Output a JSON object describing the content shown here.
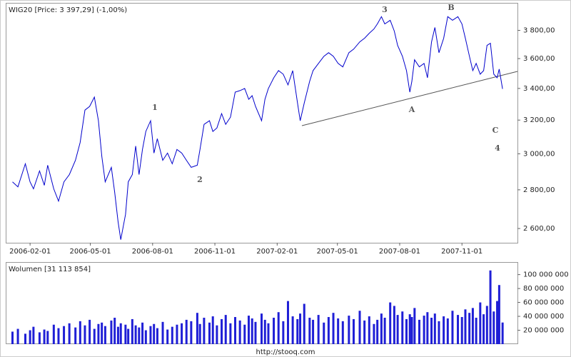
{
  "chart_data": [
    {
      "type": "line",
      "title": "WIG20 [Price: 3 397,29] (-1,00%)",
      "color": "#0000cc",
      "log_scale": true,
      "x": [
        "2006-01-06",
        "2006-01-14",
        "2006-01-25",
        "2006-02-01",
        "2006-02-06",
        "2006-02-15",
        "2006-02-22",
        "2006-02-27",
        "2006-03-08",
        "2006-03-15",
        "2006-03-23",
        "2006-03-31",
        "2006-04-09",
        "2006-04-16",
        "2006-04-23",
        "2006-04-30",
        "2006-05-07",
        "2006-05-13",
        "2006-05-18",
        "2006-05-23",
        "2006-06-01",
        "2006-06-06",
        "2006-06-11",
        "2006-06-15",
        "2006-06-22",
        "2006-06-26",
        "2006-07-02",
        "2006-07-07",
        "2006-07-12",
        "2006-07-17",
        "2006-07-22",
        "2006-07-29",
        "2006-08-03",
        "2006-08-08",
        "2006-08-16",
        "2006-08-23",
        "2006-08-30",
        "2006-09-06",
        "2006-09-13",
        "2006-09-20",
        "2006-09-27",
        "2006-10-06",
        "2006-10-10",
        "2006-10-16",
        "2006-10-24",
        "2006-10-29",
        "2006-11-04",
        "2006-11-11",
        "2006-11-17",
        "2006-11-24",
        "2006-12-01",
        "2006-12-08",
        "2006-12-15",
        "2006-12-21",
        "2006-12-26",
        "2006-12-31",
        "2007-01-09",
        "2007-01-14",
        "2007-01-19",
        "2007-01-27",
        "2007-02-03",
        "2007-02-10",
        "2007-02-17",
        "2007-02-24",
        "2007-03-03",
        "2007-03-07",
        "2007-03-13",
        "2007-03-21",
        "2007-03-26",
        "2007-04-03",
        "2007-04-11",
        "2007-04-18",
        "2007-04-25",
        "2007-05-02",
        "2007-05-09",
        "2007-05-18",
        "2007-05-25",
        "2007-06-03",
        "2007-06-10",
        "2007-06-17",
        "2007-06-24",
        "2007-06-29",
        "2007-07-05",
        "2007-07-10",
        "2007-07-18",
        "2007-07-24",
        "2007-07-29",
        "2007-08-05",
        "2007-08-11",
        "2007-08-16",
        "2007-08-19",
        "2007-08-23",
        "2007-08-30",
        "2007-09-06",
        "2007-09-11",
        "2007-09-17",
        "2007-09-22",
        "2007-09-28",
        "2007-10-05",
        "2007-10-11",
        "2007-10-18",
        "2007-10-26",
        "2007-11-01",
        "2007-11-06",
        "2007-11-12",
        "2007-11-17",
        "2007-11-22",
        "2007-11-28",
        "2007-12-03",
        "2007-12-08",
        "2007-12-13",
        "2007-12-18",
        "2007-12-23",
        "2007-12-26",
        "2007-12-31"
      ],
      "values": [
        2843,
        2816,
        2943,
        2843,
        2805,
        2903,
        2824,
        2935,
        2805,
        2740,
        2843,
        2883,
        2963,
        3066,
        3262,
        3285,
        3344,
        3196,
        2983,
        2843,
        2923,
        2786,
        2635,
        2545,
        2672,
        2843,
        2883,
        3045,
        2883,
        3025,
        3131,
        3196,
        3004,
        3088,
        2963,
        3004,
        2943,
        3025,
        3004,
        2963,
        2923,
        2935,
        3025,
        3174,
        3196,
        3131,
        3152,
        3240,
        3174,
        3218,
        3376,
        3386,
        3400,
        3330,
        3353,
        3285,
        3196,
        3330,
        3400,
        3470,
        3518,
        3494,
        3423,
        3518,
        3307,
        3196,
        3307,
        3446,
        3518,
        3567,
        3616,
        3641,
        3616,
        3567,
        3543,
        3641,
        3666,
        3717,
        3743,
        3779,
        3810,
        3847,
        3901,
        3847,
        3874,
        3795,
        3692,
        3616,
        3518,
        3376,
        3446,
        3592,
        3543,
        3567,
        3470,
        3717,
        3821,
        3641,
        3743,
        3901,
        3874,
        3901,
        3847,
        3743,
        3616,
        3518,
        3567,
        3494,
        3518,
        3692,
        3707,
        3494,
        3470,
        3528,
        3397
      ],
      "xlim": [
        "2005-12-27",
        "2008-01-22"
      ],
      "xticks": [
        "2006-02-01",
        "2006-05-01",
        "2006-08-01",
        "2006-11-01",
        "2007-02-01",
        "2007-05-01",
        "2007-08-01",
        "2007-11-01"
      ],
      "ylim": [
        2530,
        4000
      ],
      "yticks": [
        {
          "value": 2600,
          "label": "2 600,00"
        },
        {
          "value": 2800,
          "label": "2 800,00"
        },
        {
          "value": 3000,
          "label": "3 000,00"
        },
        {
          "value": 3200,
          "label": "3 200,00"
        },
        {
          "value": 3400,
          "label": "3 400,00"
        },
        {
          "value": 3600,
          "label": "3 600,00"
        },
        {
          "value": 3800,
          "label": "3 800,00"
        }
      ],
      "annotations": [
        "1",
        "2",
        "3",
        "A",
        "B",
        "C",
        "4"
      ]
    },
    {
      "type": "bar",
      "title": "Wolumen [31 113 854]",
      "color": "#1f1fd6",
      "x": [
        "2006-01-06",
        "2006-01-14",
        "2006-01-25",
        "2006-02-01",
        "2006-02-06",
        "2006-02-15",
        "2006-02-22",
        "2006-02-27",
        "2006-03-08",
        "2006-03-15",
        "2006-03-23",
        "2006-03-31",
        "2006-04-09",
        "2006-04-16",
        "2006-04-23",
        "2006-04-30",
        "2006-05-07",
        "2006-05-13",
        "2006-05-18",
        "2006-05-23",
        "2006-06-01",
        "2006-06-06",
        "2006-06-11",
        "2006-06-15",
        "2006-06-22",
        "2006-06-26",
        "2006-07-02",
        "2006-07-07",
        "2006-07-12",
        "2006-07-17",
        "2006-07-22",
        "2006-07-29",
        "2006-08-03",
        "2006-08-08",
        "2006-08-16",
        "2006-08-23",
        "2006-08-30",
        "2006-09-06",
        "2006-09-13",
        "2006-09-20",
        "2006-09-27",
        "2006-10-06",
        "2006-10-10",
        "2006-10-16",
        "2006-10-24",
        "2006-10-29",
        "2006-11-04",
        "2006-11-11",
        "2006-11-17",
        "2006-11-24",
        "2006-12-01",
        "2006-12-08",
        "2006-12-15",
        "2006-12-21",
        "2006-12-26",
        "2006-12-31",
        "2007-01-09",
        "2007-01-14",
        "2007-01-19",
        "2007-01-27",
        "2007-02-03",
        "2007-02-10",
        "2007-02-17",
        "2007-02-24",
        "2007-03-03",
        "2007-03-07",
        "2007-03-13",
        "2007-03-21",
        "2007-03-26",
        "2007-04-03",
        "2007-04-11",
        "2007-04-18",
        "2007-04-25",
        "2007-05-02",
        "2007-05-09",
        "2007-05-18",
        "2007-05-25",
        "2007-06-03",
        "2007-06-10",
        "2007-06-17",
        "2007-06-24",
        "2007-06-29",
        "2007-07-05",
        "2007-07-10",
        "2007-07-18",
        "2007-07-24",
        "2007-07-29",
        "2007-08-05",
        "2007-08-11",
        "2007-08-16",
        "2007-08-19",
        "2007-08-23",
        "2007-08-30",
        "2007-09-06",
        "2007-09-11",
        "2007-09-17",
        "2007-09-22",
        "2007-09-28",
        "2007-10-05",
        "2007-10-11",
        "2007-10-18",
        "2007-10-26",
        "2007-11-01",
        "2007-11-06",
        "2007-11-12",
        "2007-11-17",
        "2007-11-22",
        "2007-11-28",
        "2007-12-03",
        "2007-12-08",
        "2007-12-13",
        "2007-12-18",
        "2007-12-23",
        "2007-12-26",
        "2007-12-31"
      ],
      "values": [
        18000000,
        22000000,
        15000000,
        20000000,
        25000000,
        17000000,
        21000000,
        19000000,
        28000000,
        23000000,
        26000000,
        30000000,
        24000000,
        33000000,
        27000000,
        35000000,
        22000000,
        29000000,
        31000000,
        26000000,
        34000000,
        38000000,
        25000000,
        30000000,
        28000000,
        22000000,
        36000000,
        27000000,
        24000000,
        31000000,
        20000000,
        26000000,
        29000000,
        23000000,
        32000000,
        21000000,
        25000000,
        28000000,
        30000000,
        35000000,
        33000000,
        45000000,
        29000000,
        38000000,
        31000000,
        40000000,
        27000000,
        36000000,
        42000000,
        30000000,
        39000000,
        34000000,
        28000000,
        41000000,
        37000000,
        32000000,
        44000000,
        35000000,
        30000000,
        38000000,
        46000000,
        33000000,
        62000000,
        40000000,
        36000000,
        44000000,
        58000000,
        38000000,
        35000000,
        42000000,
        31000000,
        39000000,
        45000000,
        37000000,
        33000000,
        41000000,
        36000000,
        48000000,
        34000000,
        40000000,
        29000000,
        35000000,
        44000000,
        38000000,
        60000000,
        55000000,
        42000000,
        47000000,
        36000000,
        43000000,
        39000000,
        52000000,
        35000000,
        41000000,
        46000000,
        38000000,
        44000000,
        33000000,
        40000000,
        37000000,
        48000000,
        42000000,
        39000000,
        50000000,
        45000000,
        52000000,
        38000000,
        60000000,
        43000000,
        55000000,
        106000000,
        47000000,
        62000000,
        85000000,
        31113854
      ],
      "xlim": [
        "2005-12-27",
        "2008-01-22"
      ],
      "ylim": [
        0,
        115000000
      ],
      "yticks": [
        {
          "value": 20000000,
          "label": "20 000 000"
        },
        {
          "value": 40000000,
          "label": "40 000 000"
        },
        {
          "value": 60000000,
          "label": "60 000 000"
        },
        {
          "value": 80000000,
          "label": "80 000 000"
        },
        {
          "value": 100000000,
          "label": "100 000 000"
        }
      ]
    }
  ],
  "source": "http://stooq.com"
}
